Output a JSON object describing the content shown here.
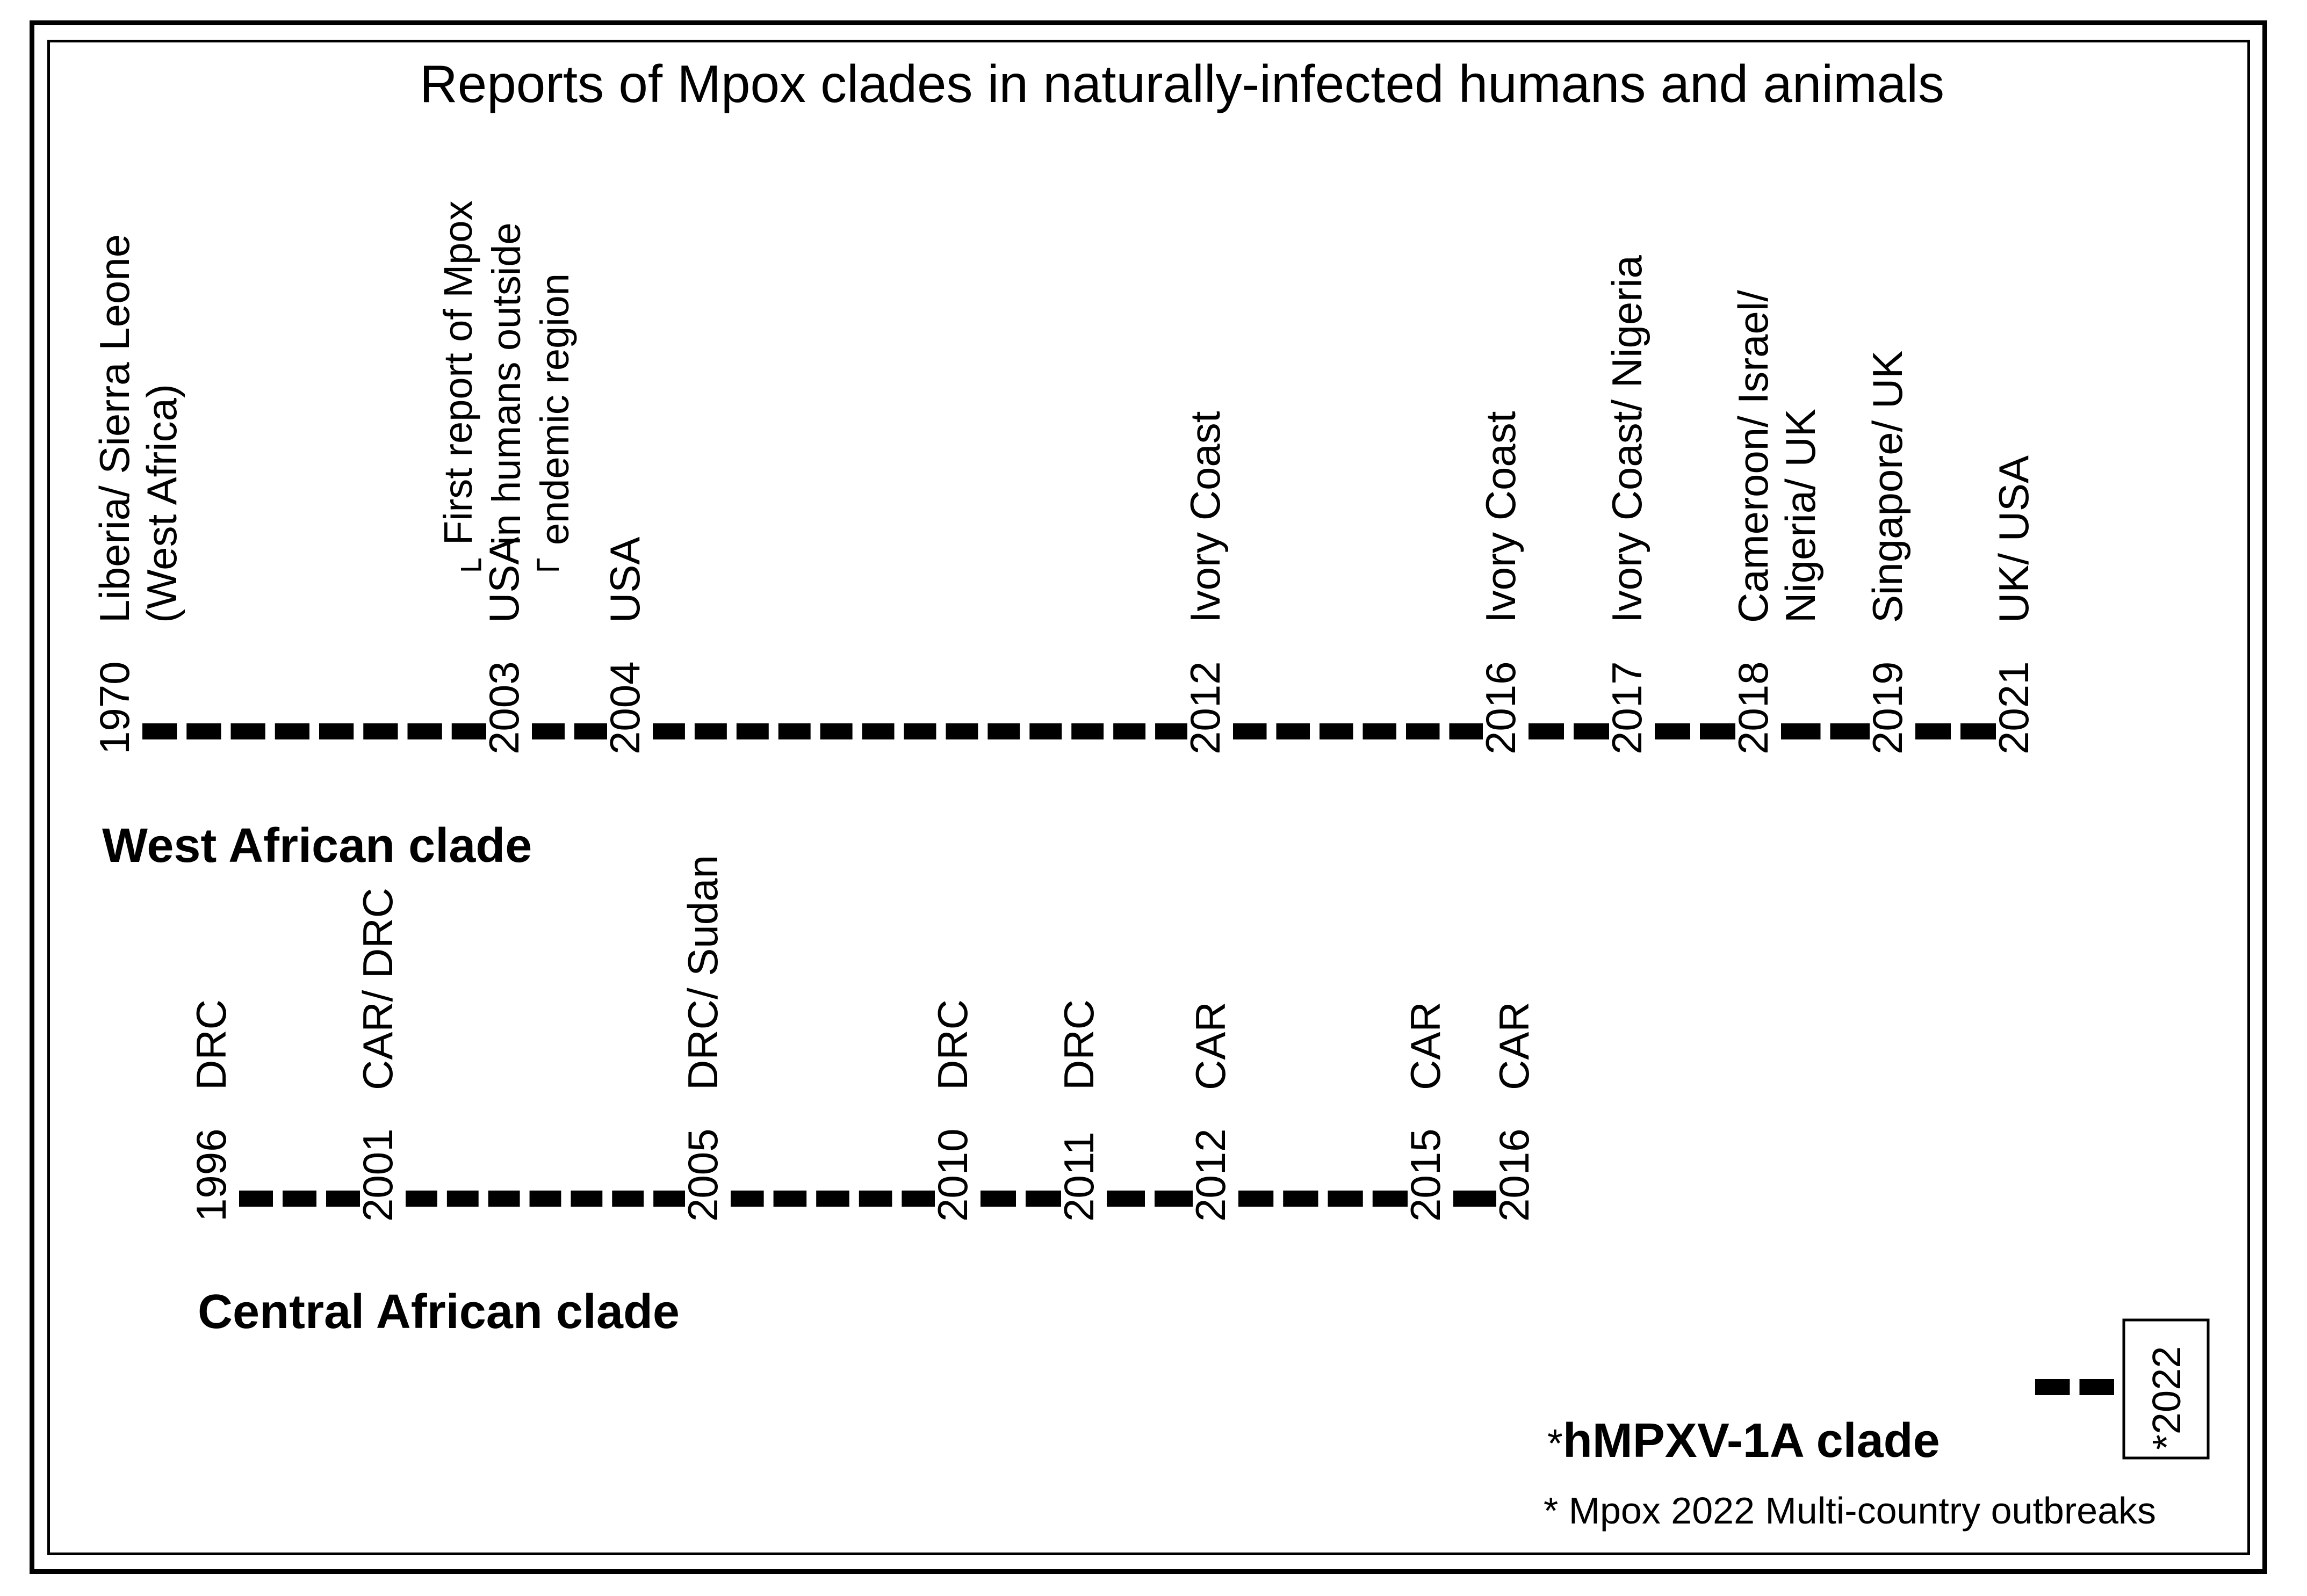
{
  "title": "Reports of Mpox clades in naturally-infected humans and animals",
  "colors": {
    "ink": "#000000",
    "background": "#ffffff"
  },
  "west": {
    "label": "West African clade",
    "events": [
      {
        "year": "1970",
        "lines": [
          "Liberia/ Sierra Leone",
          "(West Africa)"
        ]
      },
      {
        "year": "2003",
        "lines": [
          "USA"
        ]
      },
      {
        "year": "2004",
        "lines": [
          "USA"
        ]
      },
      {
        "year": "2012",
        "lines": [
          "Ivory Coast"
        ]
      },
      {
        "year": "2016",
        "lines": [
          "Ivory Coast"
        ]
      },
      {
        "year": "2017",
        "lines": [
          "Ivory Coast/ Nigeria"
        ]
      },
      {
        "year": "2018",
        "lines": [
          "Cameroon/ Israel/",
          "Nigeria/ UK"
        ]
      },
      {
        "year": "2019",
        "lines": [
          "Singapore/ UK"
        ]
      },
      {
        "year": "2021",
        "lines": [
          "UK/ USA"
        ]
      }
    ],
    "note": {
      "attached_to": "2003",
      "lines": [
        "First report of Mpox",
        "in humans outside",
        "endemic region"
      ]
    }
  },
  "central": {
    "label": "Central African clade",
    "events": [
      {
        "year": "1996",
        "lines": [
          "DRC"
        ]
      },
      {
        "year": "2001",
        "lines": [
          "CAR/ DRC"
        ]
      },
      {
        "year": "2005",
        "lines": [
          "DRC/ Sudan"
        ]
      },
      {
        "year": "2010",
        "lines": [
          "DRC"
        ]
      },
      {
        "year": "2011",
        "lines": [
          "DRC"
        ]
      },
      {
        "year": "2012",
        "lines": [
          "CAR"
        ]
      },
      {
        "year": "2015",
        "lines": [
          "CAR"
        ]
      },
      {
        "year": "2016",
        "lines": [
          "CAR"
        ]
      }
    ]
  },
  "hmpxv": {
    "label_prefix": "*",
    "label": "hMPXV-1A clade",
    "year_box": "*2022"
  },
  "footnote": "* Mpox 2022 Multi-country outbreaks"
}
